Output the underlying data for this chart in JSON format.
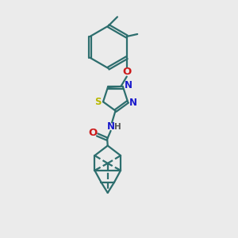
{
  "bg_color": "#ebebeb",
  "bond_color": "#2d6e6e",
  "N_color": "#1a1acc",
  "O_color": "#cc1a1a",
  "S_color": "#b8b800",
  "line_width": 1.6,
  "font_size": 8.5,
  "figsize": [
    3.0,
    3.0
  ],
  "dpi": 100,
  "xlim": [
    0,
    10
  ],
  "ylim": [
    0,
    10
  ]
}
